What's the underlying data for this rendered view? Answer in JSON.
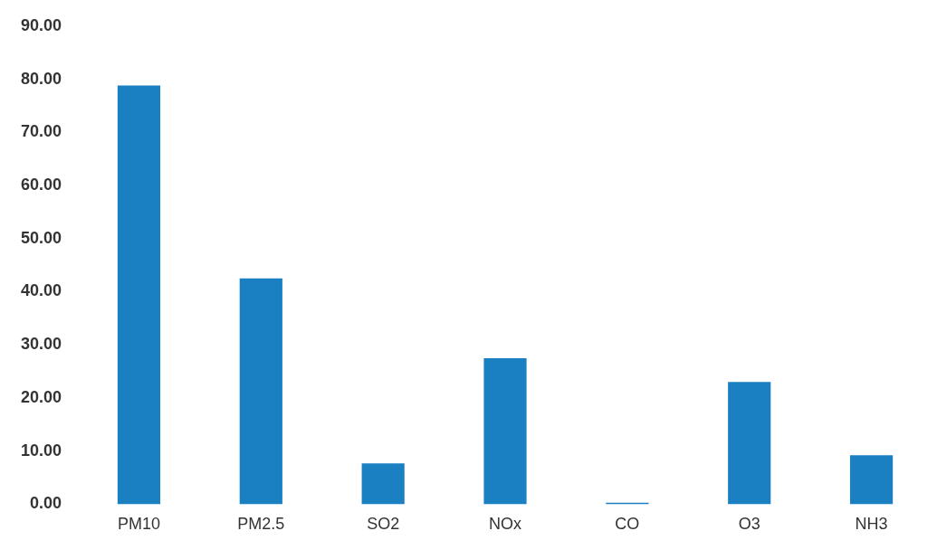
{
  "chart_data": {
    "type": "bar",
    "categories": [
      "PM10",
      "PM2.5",
      "SO2",
      "NOx",
      "CO",
      "O3",
      "NH3"
    ],
    "values": [
      78.8,
      42.5,
      7.7,
      27.5,
      0.3,
      23.0,
      9.2
    ],
    "color": "#1a80c2",
    "ylim": [
      0,
      90
    ],
    "yticks": [
      {
        "value": 0,
        "label": "0.00"
      },
      {
        "value": 10,
        "label": "10.00"
      },
      {
        "value": 20,
        "label": "20.00"
      },
      {
        "value": 30,
        "label": "30.00"
      },
      {
        "value": 40,
        "label": "40.00"
      },
      {
        "value": 50,
        "label": "50.00"
      },
      {
        "value": 60,
        "label": "60.00"
      },
      {
        "value": 70,
        "label": "70.00"
      },
      {
        "value": 80,
        "label": "80.00"
      },
      {
        "value": 90,
        "label": "90.00"
      }
    ],
    "grid": false,
    "legend": false
  }
}
